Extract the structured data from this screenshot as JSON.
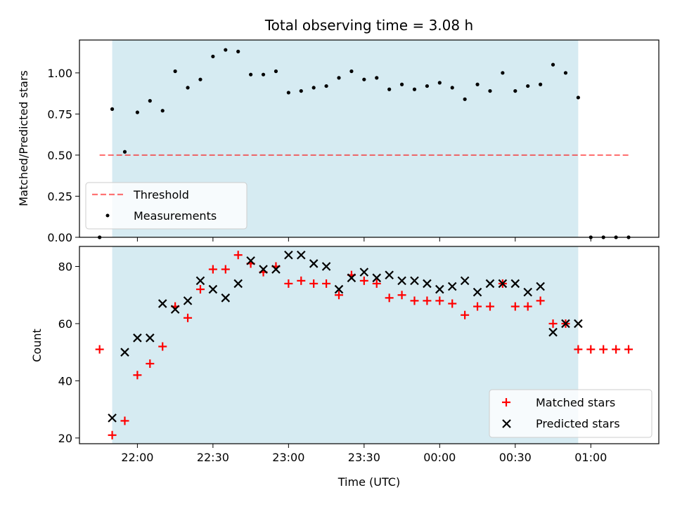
{
  "chart_data": [
    {
      "type": "scatter",
      "title": "Total observing time = 3.08 h",
      "ylabel": "Matched/Predicted stars",
      "ylim": [
        0,
        1.2
      ],
      "yticks": [
        "0.00",
        "0.25",
        "0.50",
        "0.75",
        "1.00"
      ],
      "shaded_span": [
        "21:50",
        "00:55"
      ],
      "shaded_color": "#add8e6",
      "legend_position": "lower-left",
      "series": [
        {
          "name": "Threshold",
          "kind": "dashed-line",
          "color": "#ff0000",
          "x": [
            "21:45",
            "01:15"
          ],
          "y": [
            0.5,
            0.5
          ]
        },
        {
          "name": "Measurements",
          "kind": "scatter",
          "color": "#000000",
          "points": [
            [
              "21:45",
              0.0
            ],
            [
              "21:50",
              0.78
            ],
            [
              "21:55",
              0.52
            ],
            [
              "22:00",
              0.76
            ],
            [
              "22:05",
              0.83
            ],
            [
              "22:10",
              0.77
            ],
            [
              "22:15",
              1.01
            ],
            [
              "22:20",
              0.91
            ],
            [
              "22:25",
              0.96
            ],
            [
              "22:30",
              1.1
            ],
            [
              "22:35",
              1.14
            ],
            [
              "22:40",
              1.13
            ],
            [
              "22:45",
              0.99
            ],
            [
              "22:50",
              0.99
            ],
            [
              "22:55",
              1.01
            ],
            [
              "23:00",
              0.88
            ],
            [
              "23:05",
              0.89
            ],
            [
              "23:10",
              0.91
            ],
            [
              "23:15",
              0.92
            ],
            [
              "23:20",
              0.97
            ],
            [
              "23:25",
              1.01
            ],
            [
              "23:30",
              0.96
            ],
            [
              "23:35",
              0.97
            ],
            [
              "23:40",
              0.9
            ],
            [
              "23:45",
              0.93
            ],
            [
              "23:50",
              0.9
            ],
            [
              "23:55",
              0.92
            ],
            [
              "00:00",
              0.94
            ],
            [
              "00:05",
              0.91
            ],
            [
              "00:10",
              0.84
            ],
            [
              "00:15",
              0.93
            ],
            [
              "00:20",
              0.89
            ],
            [
              "00:25",
              1.0
            ],
            [
              "00:30",
              0.89
            ],
            [
              "00:35",
              0.92
            ],
            [
              "00:40",
              0.93
            ],
            [
              "00:45",
              1.05
            ],
            [
              "00:50",
              1.0
            ],
            [
              "00:55",
              0.85
            ],
            [
              "01:00",
              0.0
            ],
            [
              "01:05",
              0.0
            ],
            [
              "01:10",
              0.0
            ],
            [
              "01:15",
              0.0
            ]
          ]
        }
      ]
    },
    {
      "type": "scatter",
      "xlabel": "Time (UTC)",
      "ylabel": "Count",
      "ylim": [
        18,
        87
      ],
      "yticks": [
        "20",
        "40",
        "60",
        "80"
      ],
      "xticks": [
        "22:00",
        "22:30",
        "23:00",
        "23:30",
        "00:00",
        "00:30",
        "01:00"
      ],
      "xlim": [
        "21:37",
        "01:27"
      ],
      "shaded_span": [
        "21:50",
        "00:55"
      ],
      "legend_position": "lower-right",
      "series": [
        {
          "name": "Matched stars",
          "marker": "plus",
          "color": "#ff0000",
          "points": [
            [
              "21:45",
              51
            ],
            [
              "21:50",
              21
            ],
            [
              "21:55",
              26
            ],
            [
              "22:00",
              42
            ],
            [
              "22:05",
              46
            ],
            [
              "22:10",
              52
            ],
            [
              "22:15",
              66
            ],
            [
              "22:20",
              62
            ],
            [
              "22:25",
              72
            ],
            [
              "22:30",
              79
            ],
            [
              "22:35",
              79
            ],
            [
              "22:40",
              84
            ],
            [
              "22:45",
              81
            ],
            [
              "22:50",
              78
            ],
            [
              "22:55",
              80
            ],
            [
              "23:00",
              74
            ],
            [
              "23:05",
              75
            ],
            [
              "23:10",
              74
            ],
            [
              "23:15",
              74
            ],
            [
              "23:20",
              70
            ],
            [
              "23:25",
              77
            ],
            [
              "23:30",
              75
            ],
            [
              "23:35",
              74
            ],
            [
              "23:40",
              69
            ],
            [
              "23:45",
              70
            ],
            [
              "23:50",
              68
            ],
            [
              "23:55",
              68
            ],
            [
              "00:00",
              68
            ],
            [
              "00:05",
              67
            ],
            [
              "00:10",
              63
            ],
            [
              "00:15",
              66
            ],
            [
              "00:20",
              66
            ],
            [
              "00:25",
              74
            ],
            [
              "00:30",
              66
            ],
            [
              "00:35",
              66
            ],
            [
              "00:40",
              68
            ],
            [
              "00:45",
              60
            ],
            [
              "00:50",
              60
            ],
            [
              "00:55",
              51
            ],
            [
              "01:00",
              51
            ],
            [
              "01:05",
              51
            ],
            [
              "01:10",
              51
            ],
            [
              "01:15",
              51
            ]
          ]
        },
        {
          "name": "Predicted stars",
          "marker": "x",
          "color": "#000000",
          "points": [
            [
              "21:50",
              27
            ],
            [
              "21:55",
              50
            ],
            [
              "22:00",
              55
            ],
            [
              "22:05",
              55
            ],
            [
              "22:10",
              67
            ],
            [
              "22:15",
              65
            ],
            [
              "22:20",
              68
            ],
            [
              "22:25",
              75
            ],
            [
              "22:30",
              72
            ],
            [
              "22:35",
              69
            ],
            [
              "22:40",
              74
            ],
            [
              "22:45",
              82
            ],
            [
              "22:50",
              79
            ],
            [
              "22:55",
              79
            ],
            [
              "23:00",
              84
            ],
            [
              "23:05",
              84
            ],
            [
              "23:10",
              81
            ],
            [
              "23:15",
              80
            ],
            [
              "23:20",
              72
            ],
            [
              "23:25",
              76
            ],
            [
              "23:30",
              78
            ],
            [
              "23:35",
              76
            ],
            [
              "23:40",
              77
            ],
            [
              "23:45",
              75
            ],
            [
              "23:50",
              75
            ],
            [
              "23:55",
              74
            ],
            [
              "00:00",
              72
            ],
            [
              "00:05",
              73
            ],
            [
              "00:10",
              75
            ],
            [
              "00:15",
              71
            ],
            [
              "00:20",
              74
            ],
            [
              "00:25",
              74
            ],
            [
              "00:30",
              74
            ],
            [
              "00:35",
              71
            ],
            [
              "00:40",
              73
            ],
            [
              "00:45",
              57
            ],
            [
              "00:50",
              60
            ],
            [
              "00:55",
              60
            ]
          ]
        }
      ]
    }
  ]
}
